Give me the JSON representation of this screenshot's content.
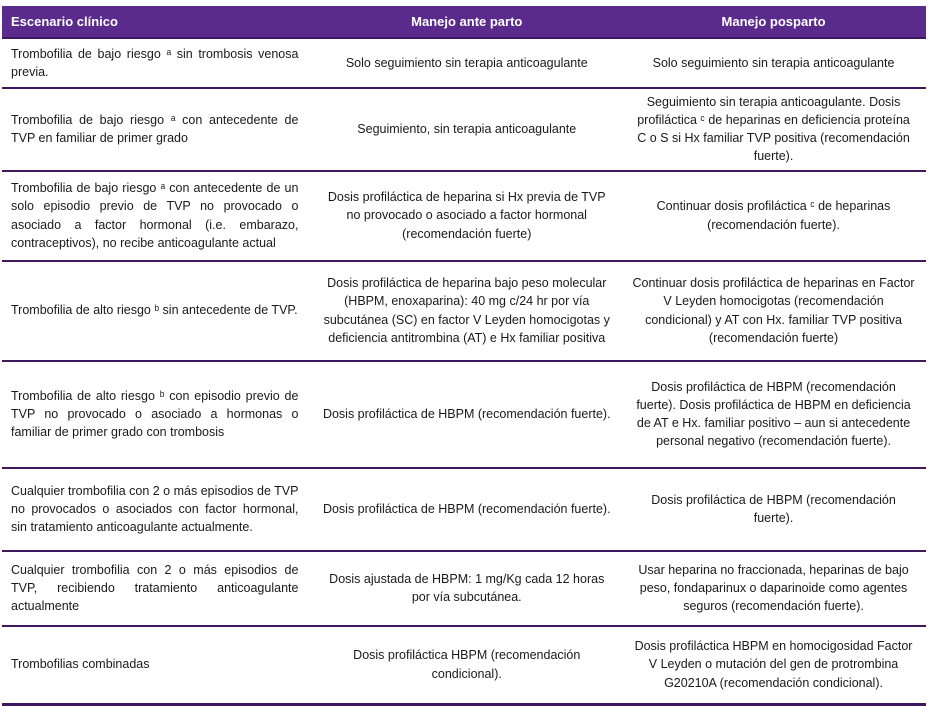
{
  "table": {
    "headers": {
      "escenario": "Escenario clínico",
      "ante_parto": "Manejo ante parto",
      "posparto": "Manejo posparto"
    },
    "rows": [
      {
        "escenario": "Trombofilia de bajo riesgo ᵃ sin trombosis venosa previa.",
        "ante_parto": "Solo seguimiento sin terapia anticoagulante",
        "posparto": "Solo seguimiento sin terapia anticoagulante"
      },
      {
        "escenario": "Trombofilia de bajo riesgo ᵃ con antecedente de TVP en familiar de primer grado",
        "ante_parto": "Seguimiento, sin terapia anticoagulante",
        "posparto": "Seguimiento sin terapia anticoagulante. Dosis profiláctica ᶜ de heparinas en deficiencia proteína C o S si Hx familiar TVP positiva (recomendación fuerte)."
      },
      {
        "escenario": "Trombofilia de bajo riesgo ᵃ con antecedente de un solo episodio previo de TVP no provocado o asociado a factor hormonal (i.e. embarazo, contraceptivos), no recibe anticoagulante actual",
        "ante_parto": "Dosis profiláctica de heparina si Hx previa de TVP no provocado o asociado a factor hormonal (recomendación fuerte)",
        "posparto": "Continuar dosis profiláctica ᶜ de heparinas (recomendación fuerte)."
      },
      {
        "escenario": "Trombofilia de alto riesgo ᵇ sin antecedente de TVP.",
        "ante_parto": "Dosis profiláctica de heparina bajo peso molecular (HBPM, enoxaparina): 40 mg c/24 hr por vía subcutánea (SC) en factor V Leyden homocigotas y deficiencia antitrombina (AT) e Hx familiar positiva",
        "posparto": "Continuar dosis profiláctica de heparinas en Factor V Leyden homocigotas (recomendación condicional) y AT con Hx. familiar TVP positiva (recomendación fuerte)"
      },
      {
        "escenario": "Trombofilia de alto riesgo ᵇ con episodio previo de TVP no provocado o asociado a hormonas o familiar de primer grado con trombosis",
        "ante_parto": "Dosis profiláctica de HBPM (recomendación fuerte).",
        "posparto": "Dosis profiláctica de HBPM (recomendación fuerte).  Dosis profiláctica de HBPM en deficiencia de AT e Hx. familiar positivo – aun si antecedente personal negativo (recomendación fuerte)."
      },
      {
        "escenario": "Cualquier trombofilia con 2 o más episodios de TVP no provocados o asociados con factor hormonal, sin tratamiento anticoagulante actualmente.",
        "ante_parto": "Dosis profiláctica de HBPM (recomendación fuerte).",
        "posparto": "Dosis profiláctica de HBPM (recomendación fuerte)."
      },
      {
        "escenario": "Cualquier trombofilia con 2 o más episodios de TVP, recibiendo tratamiento anticoagulante actualmente",
        "ante_parto": "Dosis ajustada de HBPM: 1 mg/Kg cada 12 horas por vía subcutánea.",
        "posparto": "Usar heparina no fraccionada, heparinas de bajo peso, fondaparinux o daparinoide como agentes seguros (recomendación fuerte)."
      },
      {
        "escenario": "Trombofilias combinadas",
        "ante_parto": "Dosis profiláctica HBPM (recomendación condicional).",
        "posparto": "Dosis profiláctica HBPM en homocigosidad Factor V Leyden o mutación del gen de protrombina G20210A (recomendación condicional)."
      }
    ]
  },
  "colors": {
    "header_bg": "#5a2b8c",
    "header_text": "#ffffff",
    "row_divider": "#40175f",
    "body_text": "#1a1a1a",
    "row_bg": "#ffffff"
  }
}
